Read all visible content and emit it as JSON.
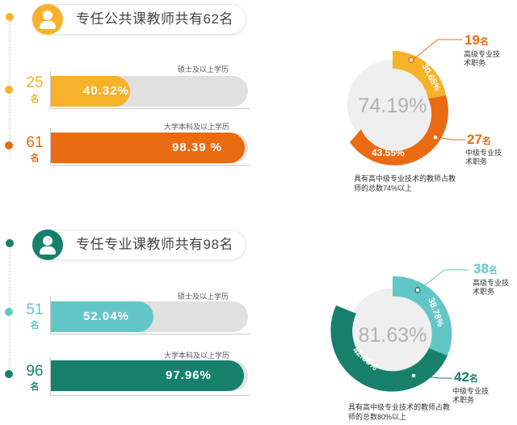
{
  "colors": {
    "orange_light": "#f6b22a",
    "orange_dark": "#ea6b12",
    "teal_light": "#62c6c6",
    "teal_dark": "#17806b",
    "track": "#e0e0e0",
    "donut_center": "#efefef",
    "center_text": "#b1b1b1"
  },
  "icons": {
    "avatar": "person-silhouette-icon",
    "marker": "dot-icon"
  },
  "sections": [
    {
      "header": "专任公共课教师共有62名",
      "bars": [
        {
          "count": "25",
          "unit": "名",
          "percent": 40.32,
          "percent_label": "40.32%",
          "caption": "硕士及以上学历"
        },
        {
          "count": "61",
          "unit": "名",
          "percent": 98.39,
          "percent_label": "98.39 %",
          "caption": "大学本科及以上学历"
        }
      ],
      "donut": {
        "center": "74.19%",
        "segments": [
          {
            "value": 30.65,
            "label": "30.65%"
          },
          {
            "value": 43.55,
            "label": "43.55%"
          }
        ],
        "callouts": [
          {
            "num": "19",
            "unit": "名",
            "label": "高级专业技术职务"
          },
          {
            "num": "27",
            "unit": "名",
            "label": "中级专业技术职务"
          }
        ],
        "note": "具有高中级专业技术的教师占教师的总数74%以上"
      }
    },
    {
      "header": "专任专业课教师共有98名",
      "bars": [
        {
          "count": "51",
          "unit": "名",
          "percent": 52.04,
          "percent_label": "52.04%",
          "caption": "硕士及以上学历"
        },
        {
          "count": "96",
          "unit": "名",
          "percent": 97.96,
          "percent_label": "97.96%",
          "caption": "大学本科及以上学历"
        }
      ],
      "donut": {
        "center": "81.63%",
        "segments": [
          {
            "value": 38.78,
            "label": "38.78%"
          },
          {
            "value": 42.86,
            "label": "42.86%"
          }
        ],
        "callouts": [
          {
            "num": "38",
            "unit": "名",
            "label": "高级专业技术职务"
          },
          {
            "num": "42",
            "unit": "名",
            "label": "中级专业技术职务"
          }
        ],
        "note": "具有高中级专业技术的教师占教师的总数80%以上"
      }
    }
  ]
}
